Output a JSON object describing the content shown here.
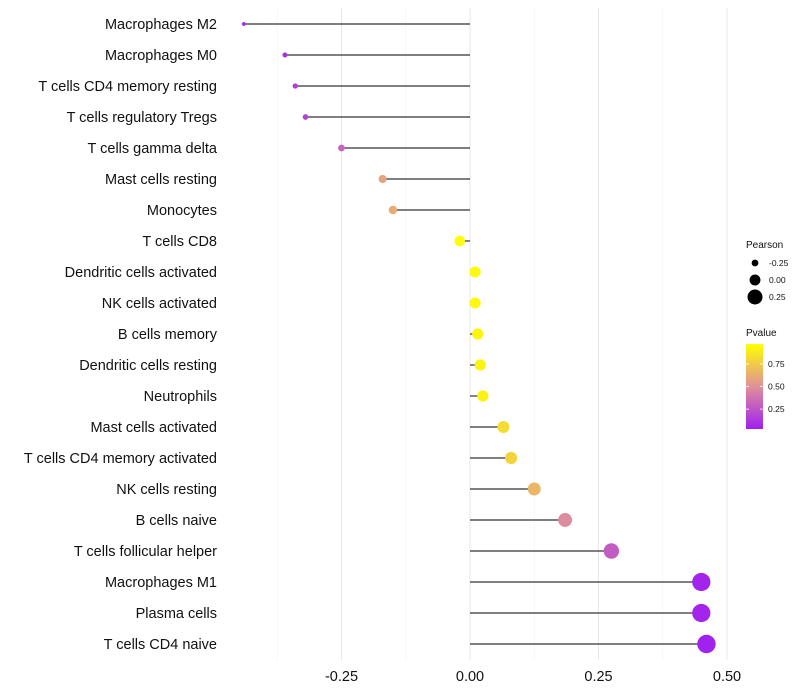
{
  "chart_data": {
    "type": "lollipop",
    "title": "",
    "xlabel": "",
    "ylabel": "",
    "xlim": [
      -0.42,
      0.5
    ],
    "xticks": [
      -0.25,
      0.0,
      0.25,
      0.5
    ],
    "xtick_labels": [
      "-0.25",
      "0.00",
      "0.25",
      "0.50"
    ],
    "grid": true,
    "categories": [
      "Macrophages M2",
      "Macrophages M0",
      "T cells CD4 memory resting",
      "T cells regulatory  Tregs",
      "T cells gamma delta",
      "Mast cells resting",
      "Monocytes",
      "T cells CD8",
      "Dendritic cells activated",
      "NK cells activated",
      "B cells memory",
      "Dendritic cells resting",
      "Neutrophils",
      "Mast cells activated",
      "T cells CD4 memory activated",
      "NK cells resting",
      "B cells naive",
      "T cells follicular helper",
      "Macrophages M1",
      "Plasma cells",
      "T cells CD4 naive"
    ],
    "pearson": [
      -0.44,
      -0.36,
      -0.34,
      -0.32,
      -0.25,
      -0.17,
      -0.15,
      -0.02,
      0.01,
      0.01,
      0.015,
      0.02,
      0.025,
      0.065,
      0.08,
      0.125,
      0.185,
      0.275,
      0.45,
      0.45,
      0.46
    ],
    "pvalue": [
      0.05,
      0.1,
      0.14,
      0.18,
      0.32,
      0.58,
      0.62,
      0.96,
      0.95,
      0.95,
      0.93,
      0.92,
      0.91,
      0.82,
      0.79,
      0.66,
      0.48,
      0.28,
      0.05,
      0.05,
      0.04
    ],
    "legend_position": "right",
    "legend_size": {
      "title": "Pearson",
      "values": [
        -0.25,
        0.0,
        0.25
      ],
      "labels": [
        "-0.25",
        "0.00",
        "0.25"
      ]
    },
    "legend_color": {
      "title": "Pvalue",
      "ticks": [
        0.25,
        0.5,
        0.75
      ],
      "labels": [
        "0.25",
        "0.50",
        "0.75"
      ],
      "range": [
        0.03,
        0.97
      ],
      "low_color": "#A020F0",
      "mid_color": "#E0909A",
      "high_color": "#FFFF00"
    }
  }
}
